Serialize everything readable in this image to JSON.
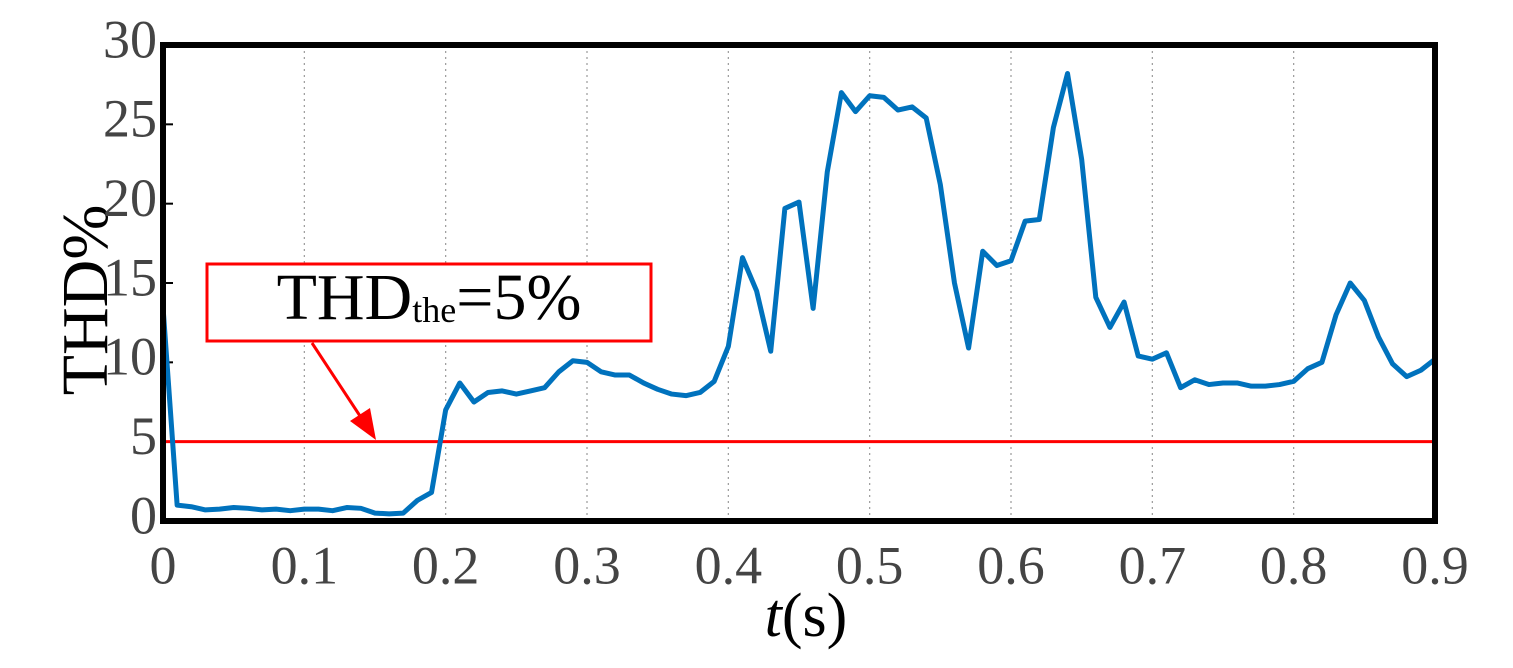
{
  "chart_data": {
    "type": "line",
    "ylabel": "THD%",
    "xlabel_symbol": "t",
    "xlabel_unit": "(s)",
    "x": [
      0,
      0.01,
      0.02,
      0.03,
      0.04,
      0.05,
      0.06,
      0.07,
      0.08,
      0.09,
      0.1,
      0.11,
      0.12,
      0.13,
      0.14,
      0.15,
      0.16,
      0.17,
      0.18,
      0.19,
      0.2,
      0.21,
      0.22,
      0.23,
      0.24,
      0.25,
      0.26,
      0.27,
      0.28,
      0.29,
      0.3,
      0.31,
      0.32,
      0.33,
      0.34,
      0.35,
      0.36,
      0.37,
      0.38,
      0.39,
      0.4,
      0.41,
      0.42,
      0.43,
      0.44,
      0.45,
      0.46,
      0.47,
      0.48,
      0.49,
      0.5,
      0.51,
      0.52,
      0.53,
      0.54,
      0.55,
      0.56,
      0.57,
      0.58,
      0.59,
      0.6,
      0.61,
      0.62,
      0.63,
      0.64,
      0.65,
      0.66,
      0.67,
      0.68,
      0.69,
      0.7,
      0.71,
      0.72,
      0.73,
      0.74,
      0.75,
      0.76,
      0.77,
      0.78,
      0.79,
      0.8,
      0.81,
      0.82,
      0.83,
      0.84,
      0.85,
      0.86,
      0.87,
      0.88,
      0.89,
      0.9
    ],
    "series": [
      {
        "color": "#0072bd",
        "values": [
          13.5,
          1.0,
          0.9,
          0.7,
          0.75,
          0.85,
          0.8,
          0.7,
          0.75,
          0.65,
          0.75,
          0.75,
          0.65,
          0.85,
          0.8,
          0.5,
          0.45,
          0.5,
          1.3,
          1.8,
          7.0,
          8.7,
          7.5,
          8.1,
          8.2,
          8.0,
          8.2,
          8.4,
          9.4,
          10.1,
          10.0,
          9.4,
          9.2,
          9.2,
          8.7,
          8.3,
          8.0,
          7.9,
          8.1,
          8.8,
          11.0,
          16.6,
          14.5,
          10.7,
          19.7,
          20.1,
          13.4,
          22.0,
          27.0,
          25.8,
          26.8,
          26.7,
          25.9,
          26.1,
          25.4,
          21.2,
          15.0,
          10.9,
          17.0,
          16.1,
          16.4,
          18.9,
          19.0,
          24.8,
          28.2,
          22.8,
          14.1,
          12.2,
          13.8,
          10.4,
          10.2,
          10.6,
          8.4,
          8.9,
          8.6,
          8.7,
          8.7,
          8.5,
          8.5,
          8.6,
          8.8,
          9.6,
          10.0,
          13.0,
          15.0,
          13.9,
          11.6,
          9.9,
          9.1,
          9.5,
          10.2
        ]
      }
    ],
    "threshold": {
      "value": 5,
      "color": "#ff0000",
      "label_main": "THD",
      "label_sub": "the",
      "label_rest": "=5%"
    },
    "xlim": [
      0,
      0.9
    ],
    "xticks": [
      0,
      0.1,
      0.2,
      0.3,
      0.4,
      0.5,
      0.6,
      0.7,
      0.8,
      0.9
    ],
    "ylim": [
      0,
      30
    ],
    "yticks": [
      0,
      5,
      10,
      15,
      20,
      25,
      30
    ],
    "grid": true
  }
}
